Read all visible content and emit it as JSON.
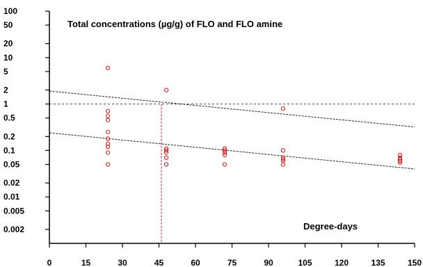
{
  "chart_data": {
    "type": "scatter",
    "title": "Total concentrations (µg/g) of FLO and FLO amine",
    "xlabel": "Degree-days",
    "ylabel": "",
    "xlim": [
      0,
      150
    ],
    "ylim": [
      0.001,
      100
    ],
    "yscale": "log",
    "x_ticks": [
      0,
      15,
      30,
      45,
      60,
      75,
      90,
      105,
      120,
      135,
      150
    ],
    "x_tick_labels": [
      "0",
      "15",
      "30",
      "45",
      "60",
      "75",
      "90",
      "105",
      "120",
      "135",
      "150"
    ],
    "y_ticks": [
      0.002,
      0.005,
      0.01,
      0.02,
      0.05,
      0.1,
      0.2,
      0.5,
      1,
      2,
      5,
      10,
      20,
      50,
      100
    ],
    "y_tick_labels": [
      "0.002",
      "0.005",
      "0.01",
      "0.02",
      "0.05",
      "0.1",
      "0.2",
      "0.5",
      "1",
      "2",
      "5",
      "10",
      "20",
      "50",
      "100"
    ],
    "grid": false,
    "colors": {
      "points": "#cc2222",
      "trend": "#222222",
      "reference": "#334488",
      "vertical_ref": "#aa2222"
    },
    "series": [
      {
        "x": [
          24,
          24,
          24,
          24,
          24,
          24,
          24,
          24,
          24,
          24,
          48,
          48,
          48,
          48,
          48,
          48,
          72,
          72,
          72,
          72,
          72,
          96,
          96,
          96,
          96,
          96,
          96,
          144,
          144,
          144,
          144,
          144
        ],
        "y": [
          6,
          0.7,
          0.55,
          0.45,
          0.25,
          0.18,
          0.14,
          0.12,
          0.09,
          0.05,
          2,
          0.11,
          0.1,
          0.09,
          0.07,
          0.05,
          0.11,
          0.1,
          0.09,
          0.08,
          0.05,
          0.8,
          0.1,
          0.07,
          0.065,
          0.06,
          0.05,
          0.08,
          0.07,
          0.065,
          0.06,
          0.055
        ]
      }
    ],
    "trend_lines": [
      {
        "x": [
          0,
          150
        ],
        "y": [
          1.9,
          0.32
        ]
      },
      {
        "x": [
          0,
          150
        ],
        "y": [
          0.24,
          0.04
        ]
      }
    ],
    "reference_lines": {
      "horizontal_y": 1,
      "vertical_x": 46
    }
  }
}
